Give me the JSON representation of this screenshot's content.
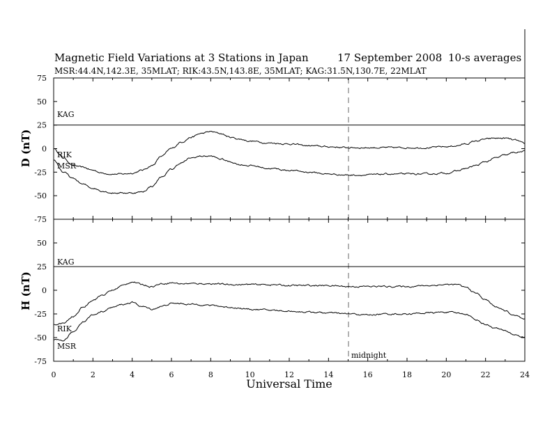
{
  "chart_data": [
    {
      "type": "line",
      "panel": "top",
      "title": "Magnetic Field Variations at 3 Stations in Japan",
      "date": "17 September 2008",
      "averaging": "10-s averages",
      "subtitle": "MSR:44.4N,142.3E, 35MLAT;  RIK:43.5N,143.8E, 35MLAT;  KAG:31.5N,130.7E, 22MLAT",
      "ylabel": "D (nT)",
      "xlabel": "",
      "xlim": [
        0,
        24
      ],
      "ylim": [
        -75,
        75
      ],
      "yticks": [
        "75",
        "50",
        "25",
        "0",
        "-25",
        "-50",
        "-75"
      ],
      "series": [
        {
          "name": "KAG",
          "x": [
            0,
            24
          ],
          "values": [
            25,
            25
          ]
        },
        {
          "name": "RIK",
          "x": [
            0,
            0.5,
            1,
            1.5,
            2,
            2.5,
            3,
            3.5,
            4,
            4.5,
            5,
            5.5,
            6,
            6.5,
            7,
            7.5,
            8,
            8.5,
            9,
            9.5,
            10,
            11,
            12,
            13,
            14,
            15,
            16,
            17,
            18,
            19,
            20,
            20.5,
            21,
            21.5,
            22,
            22.5,
            23,
            23.5,
            24
          ],
          "values": [
            0,
            -10,
            -18,
            -20,
            -23,
            -26,
            -27,
            -27,
            -26,
            -23,
            -18,
            -8,
            0,
            7,
            12,
            16,
            18,
            16,
            12,
            10,
            8,
            6,
            5,
            3,
            2,
            1,
            1,
            1,
            1,
            1,
            2,
            3,
            5,
            8,
            10,
            11,
            11,
            9,
            5
          ]
        },
        {
          "name": "MSR",
          "x": [
            0,
            0.5,
            1,
            1.5,
            2,
            2.5,
            3,
            3.5,
            4,
            4.5,
            5,
            5.5,
            6,
            6.5,
            7,
            7.5,
            8,
            8.5,
            9,
            9.5,
            10,
            11,
            12,
            13,
            14,
            15,
            16,
            17,
            18,
            19,
            20,
            20.5,
            21,
            21.5,
            22,
            22.5,
            23,
            23.5,
            24
          ],
          "values": [
            -12,
            -25,
            -32,
            -38,
            -42,
            -45,
            -47,
            -47,
            -47,
            -46,
            -40,
            -30,
            -22,
            -15,
            -10,
            -8,
            -8,
            -11,
            -14,
            -17,
            -18,
            -21,
            -23,
            -25,
            -27,
            -28,
            -28,
            -27,
            -27,
            -27,
            -26,
            -24,
            -21,
            -18,
            -14,
            -10,
            -7,
            -4,
            -3
          ]
        }
      ]
    },
    {
      "type": "line",
      "panel": "bottom",
      "ylabel": "H (nT)",
      "xlabel": "Universal Time",
      "xlim": [
        0,
        24
      ],
      "ylim": [
        -75,
        75
      ],
      "yticks": [
        "75",
        "50",
        "25",
        "0",
        "-25",
        "-50",
        "-75"
      ],
      "xticks": [
        "0",
        "2",
        "4",
        "6",
        "8",
        "10",
        "12",
        "14",
        "16",
        "18",
        "20",
        "22",
        "24"
      ],
      "annotations": [
        {
          "text": "midnight",
          "x": 15,
          "style": "dashed vertical line"
        }
      ],
      "series": [
        {
          "name": "KAG",
          "x": [
            0,
            24
          ],
          "values": [
            25,
            25
          ]
        },
        {
          "name": "RIK",
          "x": [
            0,
            0.5,
            1,
            1.5,
            2,
            2.5,
            3,
            3.5,
            4,
            4.5,
            5,
            5.5,
            6,
            6.5,
            7,
            7.5,
            8,
            9,
            10,
            11,
            12,
            13,
            14,
            15,
            16,
            17,
            18,
            19,
            20,
            20.5,
            21,
            21.5,
            22,
            22.5,
            23,
            23.5,
            24
          ],
          "values": [
            -36,
            -35,
            -28,
            -18,
            -10,
            -5,
            0,
            5,
            9,
            6,
            4,
            7,
            8,
            7,
            7,
            7,
            7,
            6,
            6,
            6,
            5,
            5,
            5,
            4,
            4,
            4,
            4,
            5,
            6,
            6,
            3,
            -3,
            -10,
            -17,
            -22,
            -27,
            -31
          ]
        },
        {
          "name": "MSR",
          "x": [
            0,
            0.5,
            1,
            1.5,
            2,
            2.5,
            3,
            3.5,
            4,
            4.5,
            5,
            5.5,
            6,
            6.5,
            7,
            7.5,
            8,
            9,
            10,
            11,
            12,
            13,
            14,
            15,
            16,
            17,
            18,
            19,
            20,
            20.5,
            21,
            21.5,
            22,
            22.5,
            23,
            23.5,
            24
          ],
          "values": [
            -53,
            -53,
            -44,
            -33,
            -26,
            -22,
            -18,
            -15,
            -13,
            -17,
            -20,
            -17,
            -14,
            -14,
            -15,
            -15,
            -16,
            -18,
            -20,
            -21,
            -22,
            -23,
            -24,
            -25,
            -26,
            -25,
            -25,
            -24,
            -23,
            -24,
            -25,
            -31,
            -36,
            -40,
            -43,
            -47,
            -50
          ]
        }
      ]
    }
  ]
}
